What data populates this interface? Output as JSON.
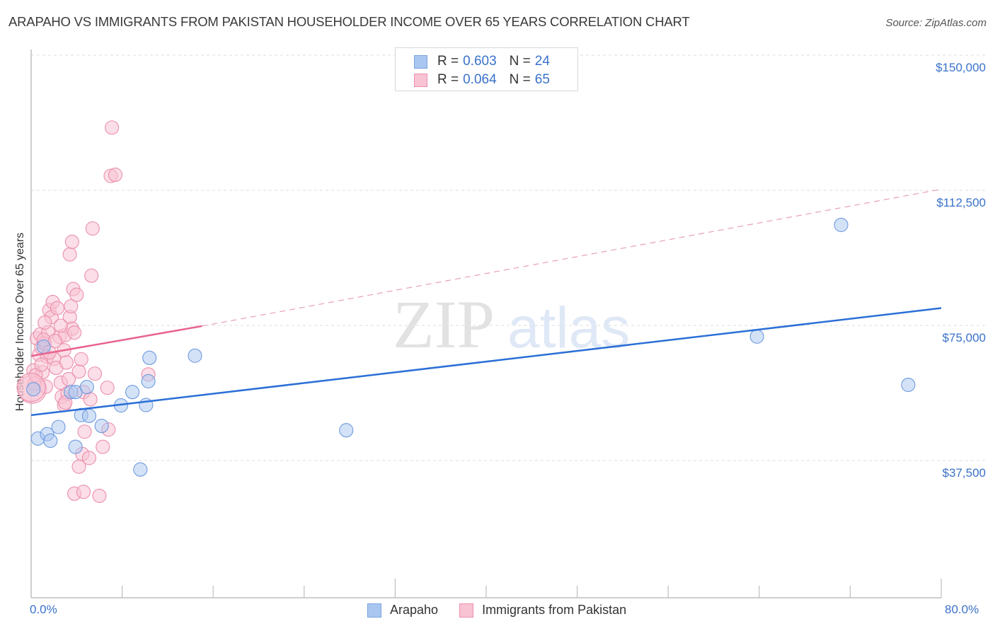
{
  "title": "ARAPAHO VS IMMIGRANTS FROM PAKISTAN HOUSEHOLDER INCOME OVER 65 YEARS CORRELATION CHART",
  "source": "Source: ZipAtlas.com",
  "watermark": {
    "zip": "ZIP",
    "atlas": "atlas"
  },
  "legend_top": {
    "rows": [
      {
        "r_label": "R =",
        "r_value": "0.603",
        "n_label": "N =",
        "n_value": "24",
        "color": "#a9c6f0",
        "border": "#7aa3de"
      },
      {
        "r_label": "R =",
        "r_value": "0.064",
        "n_label": "N =",
        "n_value": "65",
        "color": "#f8c3d3",
        "border": "#ec8fac"
      }
    ]
  },
  "legend_bottom": [
    {
      "label": "Arapaho",
      "color": "#a9c6f0",
      "border": "#7aa3de"
    },
    {
      "label": "Immigrants from Pakistan",
      "color": "#f8c3d3",
      "border": "#ec8fac"
    }
  ],
  "y_axis": {
    "label": "Householder Income Over 65 years",
    "ticks": [
      "$150,000",
      "$112,500",
      "$75,000",
      "$37,500"
    ]
  },
  "x_axis": {
    "min_label": "0.0%",
    "max_label": "80.0%"
  },
  "colors": {
    "blue_line": "#2b6fd6",
    "pink_line": "#e8648e",
    "axis_text": "#3a72c9"
  },
  "chart_data": {
    "type": "scatter",
    "title": "ARAPAHO VS IMMIGRANTS FROM PAKISTAN HOUSEHOLDER INCOME OVER 65 YEARS CORRELATION CHART",
    "xlabel": "",
    "ylabel": "Householder Income Over 65 years",
    "xlim": [
      0,
      80
    ],
    "ylim": [
      0,
      155000
    ],
    "x_unit": "%",
    "y_ticks": [
      37500,
      75000,
      112500,
      150000
    ],
    "x_tick_labels": [
      "0.0%",
      "80.0%"
    ],
    "grid": true,
    "legend_position": "top-center",
    "series": [
      {
        "name": "Arapaho",
        "R": 0.603,
        "N": 24,
        "color": "#a9c6f0",
        "trend": {
          "x": [
            0,
            80
          ],
          "y": [
            50100,
            79800
          ],
          "style": "solid"
        },
        "points": [
          [
            0.2,
            57300
          ],
          [
            0.6,
            43600
          ],
          [
            1.4,
            44800
          ],
          [
            1.7,
            43000
          ],
          [
            1.1,
            69100
          ],
          [
            2.4,
            46800
          ],
          [
            3.5,
            56500
          ],
          [
            3.9,
            56500
          ],
          [
            3.9,
            41300
          ],
          [
            4.4,
            50100
          ],
          [
            4.9,
            57900
          ],
          [
            5.1,
            49900
          ],
          [
            6.2,
            47100
          ],
          [
            7.9,
            52800
          ],
          [
            8.9,
            56500
          ],
          [
            9.6,
            35000
          ],
          [
            10.1,
            52900
          ],
          [
            10.3,
            59500
          ],
          [
            10.4,
            66000
          ],
          [
            14.4,
            66600
          ],
          [
            27.7,
            45900
          ],
          [
            63.8,
            71900
          ],
          [
            71.2,
            102900
          ],
          [
            77.1,
            58500
          ]
        ]
      },
      {
        "name": "Immigrants from Pakistan",
        "R": 0.064,
        "N": 65,
        "color": "#f8c3d3",
        "trend": {
          "x": [
            0,
            15
          ],
          "y": [
            66500,
            74800
          ],
          "style": "solid",
          "extended": {
            "x": [
              15,
              80
            ],
            "y": [
              74800,
              112800
            ],
            "style": "dashed"
          }
        },
        "points": [
          [
            0.1,
            57300
          ],
          [
            0.2,
            62500
          ],
          [
            0.3,
            58800
          ],
          [
            0.5,
            71400
          ],
          [
            0.7,
            66900
          ],
          [
            0.8,
            72500
          ],
          [
            0.9,
            68900
          ],
          [
            1.0,
            62000
          ],
          [
            1.2,
            70100
          ],
          [
            1.4,
            66300
          ],
          [
            1.5,
            73100
          ],
          [
            1.6,
            79200
          ],
          [
            1.8,
            77300
          ],
          [
            1.9,
            81500
          ],
          [
            2.0,
            65700
          ],
          [
            2.2,
            63200
          ],
          [
            2.3,
            79800
          ],
          [
            2.5,
            71800
          ],
          [
            2.6,
            59100
          ],
          [
            2.7,
            55200
          ],
          [
            2.9,
            68100
          ],
          [
            3.0,
            72300
          ],
          [
            3.1,
            64700
          ],
          [
            3.2,
            56100
          ],
          [
            3.3,
            60100
          ],
          [
            3.4,
            77300
          ],
          [
            3.5,
            80300
          ],
          [
            3.6,
            74100
          ],
          [
            3.7,
            85100
          ],
          [
            3.8,
            73000
          ],
          [
            3.4,
            94700
          ],
          [
            3.6,
            98200
          ],
          [
            4.0,
            83500
          ],
          [
            4.2,
            62200
          ],
          [
            4.4,
            65600
          ],
          [
            2.9,
            52900
          ],
          [
            4.6,
            56500
          ],
          [
            4.7,
            45500
          ],
          [
            4.5,
            39300
          ],
          [
            4.2,
            35800
          ],
          [
            3.8,
            28300
          ],
          [
            4.6,
            28800
          ],
          [
            5.1,
            38200
          ],
          [
            5.2,
            54500
          ],
          [
            5.4,
            101900
          ],
          [
            5.3,
            88800
          ],
          [
            5.6,
            61600
          ],
          [
            6.3,
            41300
          ],
          [
            6.0,
            27700
          ],
          [
            6.7,
            57700
          ],
          [
            6.8,
            46100
          ],
          [
            7.0,
            116500
          ],
          [
            7.4,
            116800
          ],
          [
            7.1,
            129900
          ],
          [
            10.3,
            61400
          ],
          [
            1.2,
            75800
          ],
          [
            0.4,
            61200
          ],
          [
            1.1,
            71000
          ],
          [
            2.1,
            70700
          ],
          [
            0.9,
            64100
          ],
          [
            1.6,
            67500
          ],
          [
            2.6,
            74900
          ],
          [
            3.0,
            53600
          ],
          [
            1.3,
            58000
          ],
          [
            0.0,
            57800
          ]
        ]
      }
    ]
  }
}
